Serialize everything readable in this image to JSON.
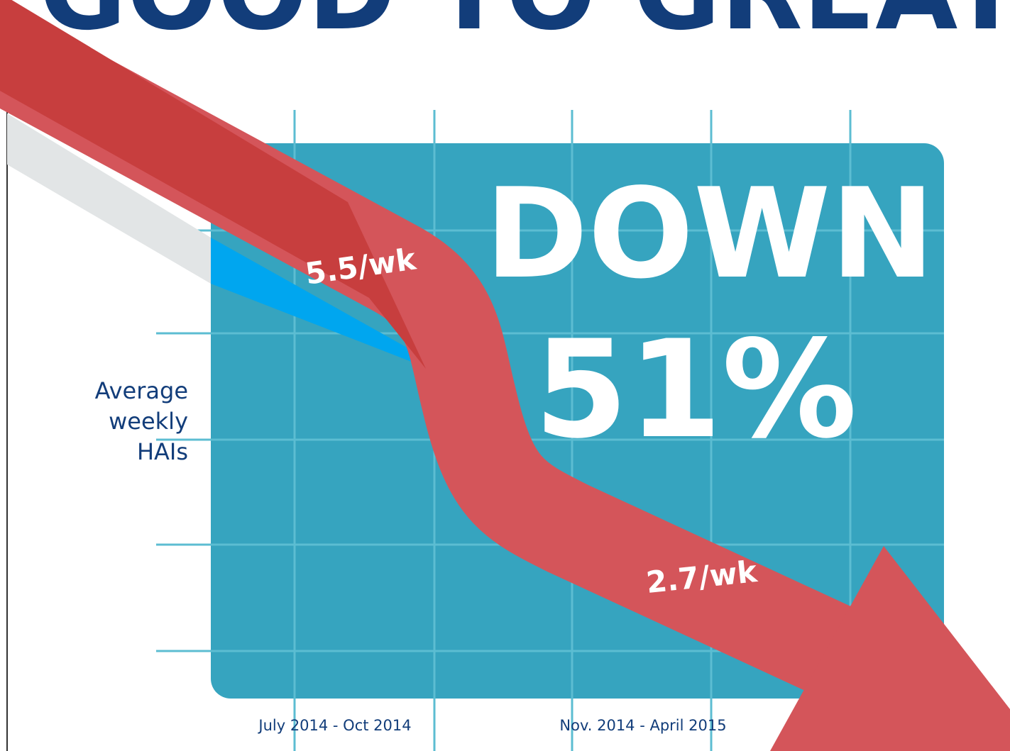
{
  "header": {
    "title": "GOOD TO GREAT"
  },
  "headline": {
    "line1": "DOWN",
    "line2": "51%"
  },
  "labels": {
    "before": "5.5/wk",
    "after": "2.7/wk"
  },
  "axis_label": {
    "lines": [
      "Average",
      "weekly",
      "HAIs"
    ]
  },
  "periods": [
    "July 2014 - Oct 2014",
    "Nov. 2014 - April 2015"
  ]
}
